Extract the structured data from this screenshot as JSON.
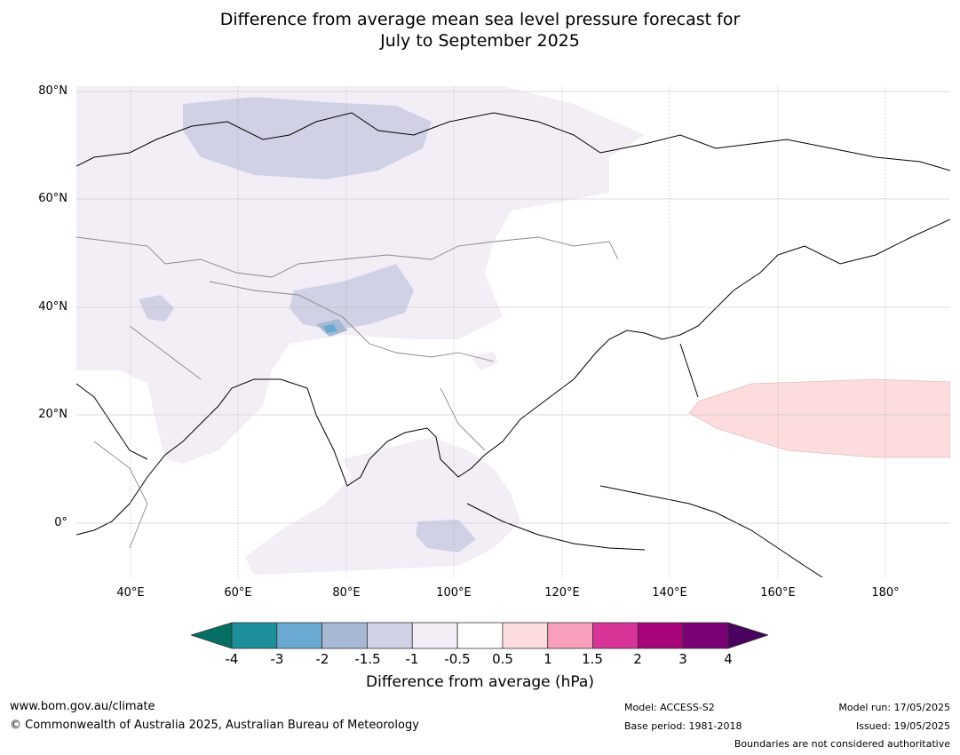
{
  "title": {
    "line1": "Difference from average mean sea level pressure forecast for",
    "line2": "July to September 2025"
  },
  "map": {
    "lat_labels": [
      "80°N",
      "60°N",
      "40°N",
      "20°N",
      "0°"
    ],
    "lon_labels": [
      "40°E",
      "60°E",
      "80°E",
      "100°E",
      "120°E",
      "140°E",
      "160°E",
      "180°"
    ],
    "extent": {
      "lon": [
        30,
        192
      ],
      "lat": [
        -10,
        81
      ]
    },
    "projection": "equirectangular"
  },
  "legend": {
    "title": "Difference from average (hPa)",
    "ticks": [
      "-4",
      "-3",
      "-2",
      "-1.5",
      "-1",
      "-0.5",
      "0.5",
      "1",
      "1.5",
      "2",
      "3",
      "4"
    ],
    "colors": {
      "below_min": "#046f62",
      "bins": [
        "#1c8f9a",
        "#6aa9d2",
        "#a7b8d4",
        "#d0d1e4",
        "#f3eef6",
        "#ffffff",
        "#fcdcdd",
        "#f79fbb",
        "#d83397",
        "#a8037a",
        "#7a0075"
      ],
      "above_max": "#4a005e"
    }
  },
  "footer": {
    "website": "www.bom.gov.au/climate",
    "copyright": "© Commonwealth of Australia 2025, Australian Bureau of Meteorology",
    "model": "Model: ACCESS-S2",
    "base_period": "Base period: 1981-2018",
    "model_run": "Model run: 17/05/2025",
    "issued": "Issued: 19/05/2025",
    "disclaimer": "Boundaries are not considered authoritative"
  }
}
